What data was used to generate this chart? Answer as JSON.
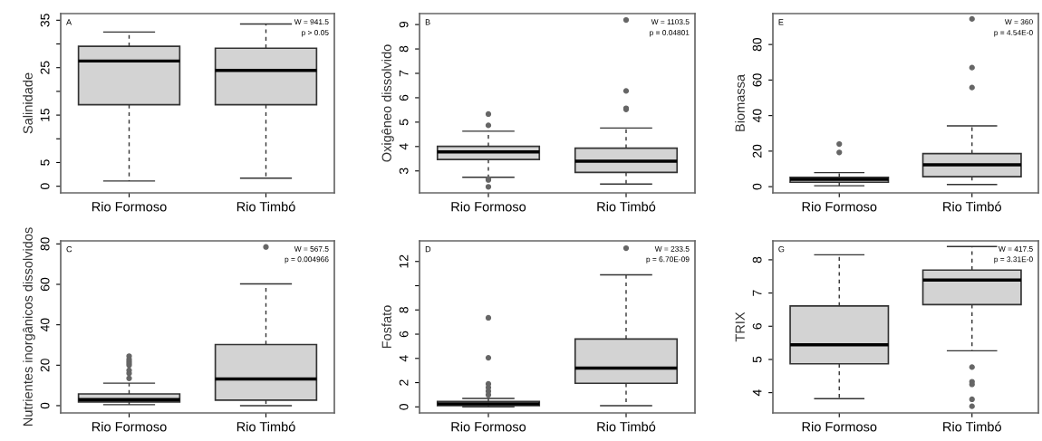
{
  "chart_data": [
    {
      "type": "box",
      "categories": [
        "Rio Formoso",
        "Rio Timbó"
      ],
      "ylabel": "Salinidade",
      "ylim": [
        -1.4,
        36.4
      ],
      "yticks": [
        0,
        5,
        {
          "value": 10,
          "label": null
        },
        15,
        {
          "value": 20,
          "label": null
        },
        25,
        {
          "value": 30,
          "label": null
        },
        35
      ],
      "grid": false,
      "color": "#d3d3d3",
      "annotations": [
        "A",
        "W = 941.5",
        "p > 0.05"
      ],
      "boxes": [
        {
          "low": 1.1,
          "q1": 17.2,
          "median": 26.4,
          "q3": 29.5,
          "high": 32.5
        },
        {
          "low": 1.7,
          "q1": 17.2,
          "median": 24.4,
          "q3": 29.1,
          "high": 34.2
        }
      ]
    },
    {
      "type": "box",
      "categories": [
        "Rio Formoso",
        "Rio Timbó"
      ],
      "ylabel": "Oxigêneo dissolvido",
      "ylim": [
        2.1,
        9.45
      ],
      "yticks": [
        3,
        4,
        5,
        6,
        7,
        8,
        9
      ],
      "grid": false,
      "color": "#d3d3d3",
      "annotations": [
        "B",
        "W = 1103.5",
        "p = 0.04801"
      ],
      "boxes": [
        {
          "low": 2.74,
          "q1": 3.47,
          "median": 3.78,
          "q3": 4.01,
          "high": 4.63,
          "outliers": [
            4.87,
            5.33,
            2.68,
            2.63,
            2.35
          ]
        },
        {
          "low": 2.46,
          "q1": 2.94,
          "median": 3.4,
          "q3": 3.93,
          "high": 4.76,
          "outliers": [
            5.52,
            5.57,
            6.28,
            9.19
          ]
        }
      ]
    },
    {
      "type": "box",
      "categories": [
        "Rio Formoso",
        "Rio Timbó"
      ],
      "ylabel": "Biomassa",
      "ylim": [
        -3.5,
        97.4
      ],
      "yticks": [
        0,
        20,
        40,
        60,
        80
      ],
      "grid": false,
      "color": "#d3d3d3",
      "annotations": [
        "E",
        "W = 360",
        "p = 4.54E-0"
      ],
      "boxes": [
        {
          "low": 0.5,
          "q1": 2.5,
          "median": 4.2,
          "q3": 5.3,
          "high": 7.9,
          "outliers": [
            19.3,
            24
          ]
        },
        {
          "low": 1.2,
          "q1": 5.6,
          "median": 12.3,
          "q3": 18.6,
          "high": 34.2,
          "outliers": [
            55.8,
            67,
            94.4
          ]
        }
      ]
    },
    {
      "type": "box",
      "categories": [
        "Rio Formoso",
        "Rio Timbó"
      ],
      "ylabel": "Nutrientes inorgânicos dissolvidos",
      "ylim": [
        -3.6,
        81.5
      ],
      "yticks": [
        0,
        20,
        40,
        60,
        80
      ],
      "grid": false,
      "color": "#d3d3d3",
      "annotations": [
        "C",
        "W = 567.5",
        "p = 0.004966"
      ],
      "boxes": [
        {
          "low": 0.5,
          "q1": 1.8,
          "median": 3.0,
          "q3": 5.8,
          "high": 11.1,
          "outliers": [
            13.5,
            16,
            17.5,
            20,
            21,
            22,
            23,
            24.5
          ]
        },
        {
          "low": 0,
          "q1": 2.7,
          "median": 13.2,
          "q3": 30.2,
          "high": 60.2,
          "outliers": [
            78.5
          ]
        }
      ]
    },
    {
      "type": "box",
      "categories": [
        "Rio Formoso",
        "Rio Timbó"
      ],
      "ylabel": "Fosfato",
      "ylim": [
        -0.5,
        13.7
      ],
      "yticks": [
        0,
        2,
        4,
        6,
        8,
        {
          "value": 10,
          "label": null
        },
        12
      ],
      "grid": false,
      "color": "#d3d3d3",
      "annotations": [
        "D",
        "W = 233.5",
        "p = 6.70E-09"
      ],
      "boxes": [
        {
          "low": 0,
          "q1": 0.1,
          "median": 0.25,
          "q3": 0.45,
          "high": 0.7,
          "outliers": [
            1.0,
            1.3,
            1.6,
            1.9,
            4.05,
            7.35
          ]
        },
        {
          "low": 0.1,
          "q1": 1.95,
          "median": 3.2,
          "q3": 5.6,
          "high": 10.9,
          "outliers": [
            13.1
          ]
        }
      ]
    },
    {
      "type": "box",
      "categories": [
        "Rio Formoso",
        "Rio Timbó"
      ],
      "ylabel": "TRIX",
      "ylim": [
        3.39,
        8.57
      ],
      "yticks": [
        4,
        5,
        6,
        7,
        8
      ],
      "grid": false,
      "color": "#d3d3d3",
      "annotations": [
        "G",
        "W = 417.5",
        "p = 3.31E-0"
      ],
      "boxes": [
        {
          "low": 3.82,
          "q1": 4.87,
          "median": 5.44,
          "q3": 6.61,
          "high": 8.15
        },
        {
          "low": 5.26,
          "q1": 6.65,
          "median": 7.39,
          "q3": 7.69,
          "high": 8.4,
          "outliers": [
            4.77,
            4.33,
            4.25,
            3.8,
            3.59
          ]
        }
      ]
    }
  ]
}
